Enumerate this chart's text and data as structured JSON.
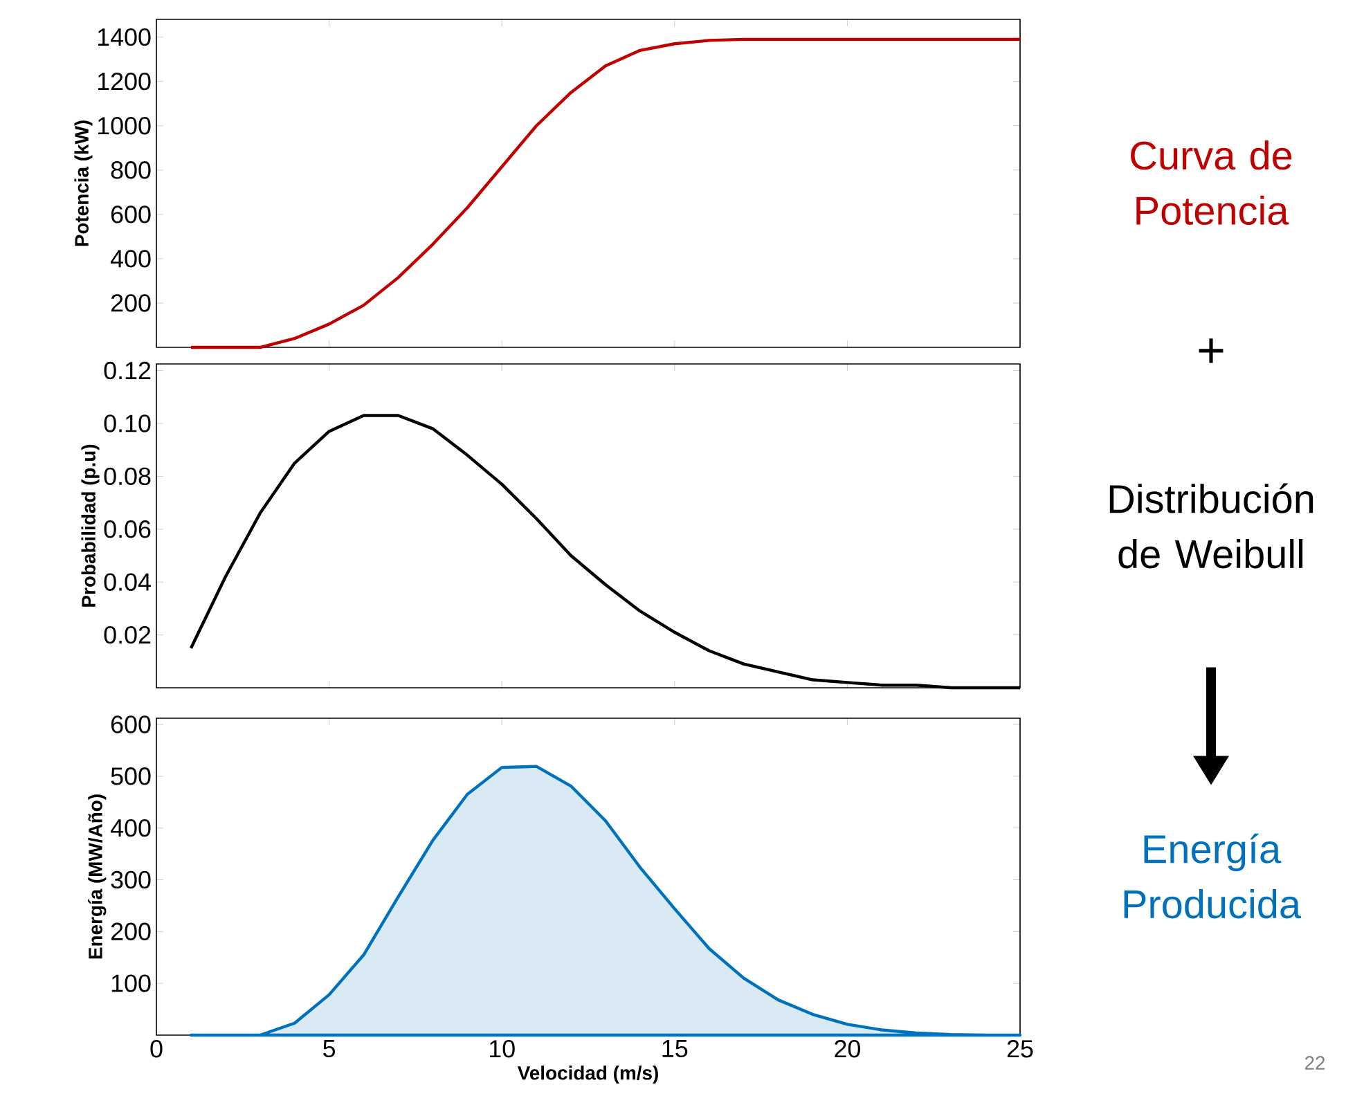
{
  "chart_data": [
    {
      "type": "line",
      "ylabel": "Potencia (kW)",
      "x": [
        1,
        2,
        3,
        4,
        5,
        6,
        7,
        8,
        9,
        10,
        11,
        12,
        13,
        14,
        15,
        16,
        17,
        18,
        19,
        20,
        21,
        22,
        23,
        24,
        25
      ],
      "series": [
        {
          "color": "#c00000",
          "values": [
            0,
            0,
            0,
            40,
            105,
            190,
            315,
            465,
            630,
            815,
            1000,
            1150,
            1270,
            1340,
            1370,
            1385,
            1390,
            1390,
            1390,
            1390,
            1390,
            1390,
            1390,
            1390,
            1390
          ]
        }
      ],
      "xlim": [
        0,
        25
      ],
      "xticks": [
        0,
        5,
        10,
        15,
        20,
        25
      ],
      "ylim": [
        0,
        1480
      ],
      "yticks": [
        200,
        400,
        600,
        800,
        1000,
        1200,
        1400
      ],
      "tick_labels": "y",
      "annotations": [
        "Curva de Potencia",
        "+"
      ]
    },
    {
      "type": "line",
      "ylabel": "Probabilidad (p.u)",
      "x": [
        1,
        2,
        3,
        4,
        5,
        6,
        7,
        8,
        9,
        10,
        11,
        12,
        13,
        14,
        15,
        16,
        17,
        18,
        19,
        20,
        21,
        22,
        23,
        24,
        25
      ],
      "series": [
        {
          "color": "#000000",
          "values": [
            0.015,
            0.042,
            0.066,
            0.085,
            0.097,
            0.103,
            0.103,
            0.098,
            0.088,
            0.077,
            0.064,
            0.05,
            0.039,
            0.029,
            0.021,
            0.014,
            0.009,
            0.006,
            0.003,
            0.002,
            0.001,
            0.001,
            0.0,
            0.0,
            0.0
          ]
        }
      ],
      "xlim": [
        0,
        25
      ],
      "xticks": [
        0,
        5,
        10,
        15,
        20,
        25
      ],
      "ylim": [
        0,
        0.1225
      ],
      "yticks": [
        0.02,
        0.04,
        0.06,
        0.08,
        {
          "value": 0.1,
          "label": "0.10"
        },
        0.12
      ],
      "tick_labels": "y",
      "annotations": [
        "Distribución de Weibull"
      ]
    },
    {
      "type": "area",
      "xlabel": "Velocidad (m/s)",
      "ylabel": "Energía (MW/Año)",
      "x": [
        1,
        2,
        3,
        4,
        5,
        6,
        7,
        8,
        9,
        10,
        11,
        12,
        13,
        14,
        15,
        16,
        17,
        18,
        19,
        20,
        21,
        22,
        23,
        24,
        25
      ],
      "series": [
        {
          "color": "#0072bd",
          "values": [
            0,
            0,
            0,
            23,
            78,
            155,
            267,
            376,
            465,
            517,
            519,
            481,
            414,
            324,
            244,
            167,
            110,
            68,
            40,
            21,
            10,
            4,
            1,
            0,
            0
          ]
        }
      ],
      "xlim": [
        0,
        25
      ],
      "xticks": [
        0,
        5,
        10,
        15,
        20,
        25
      ],
      "ylim": [
        0,
        612
      ],
      "yticks": [
        100,
        200,
        300,
        400,
        500,
        600
      ],
      "annotations": [
        "Energía Producida",
        "22"
      ]
    }
  ]
}
